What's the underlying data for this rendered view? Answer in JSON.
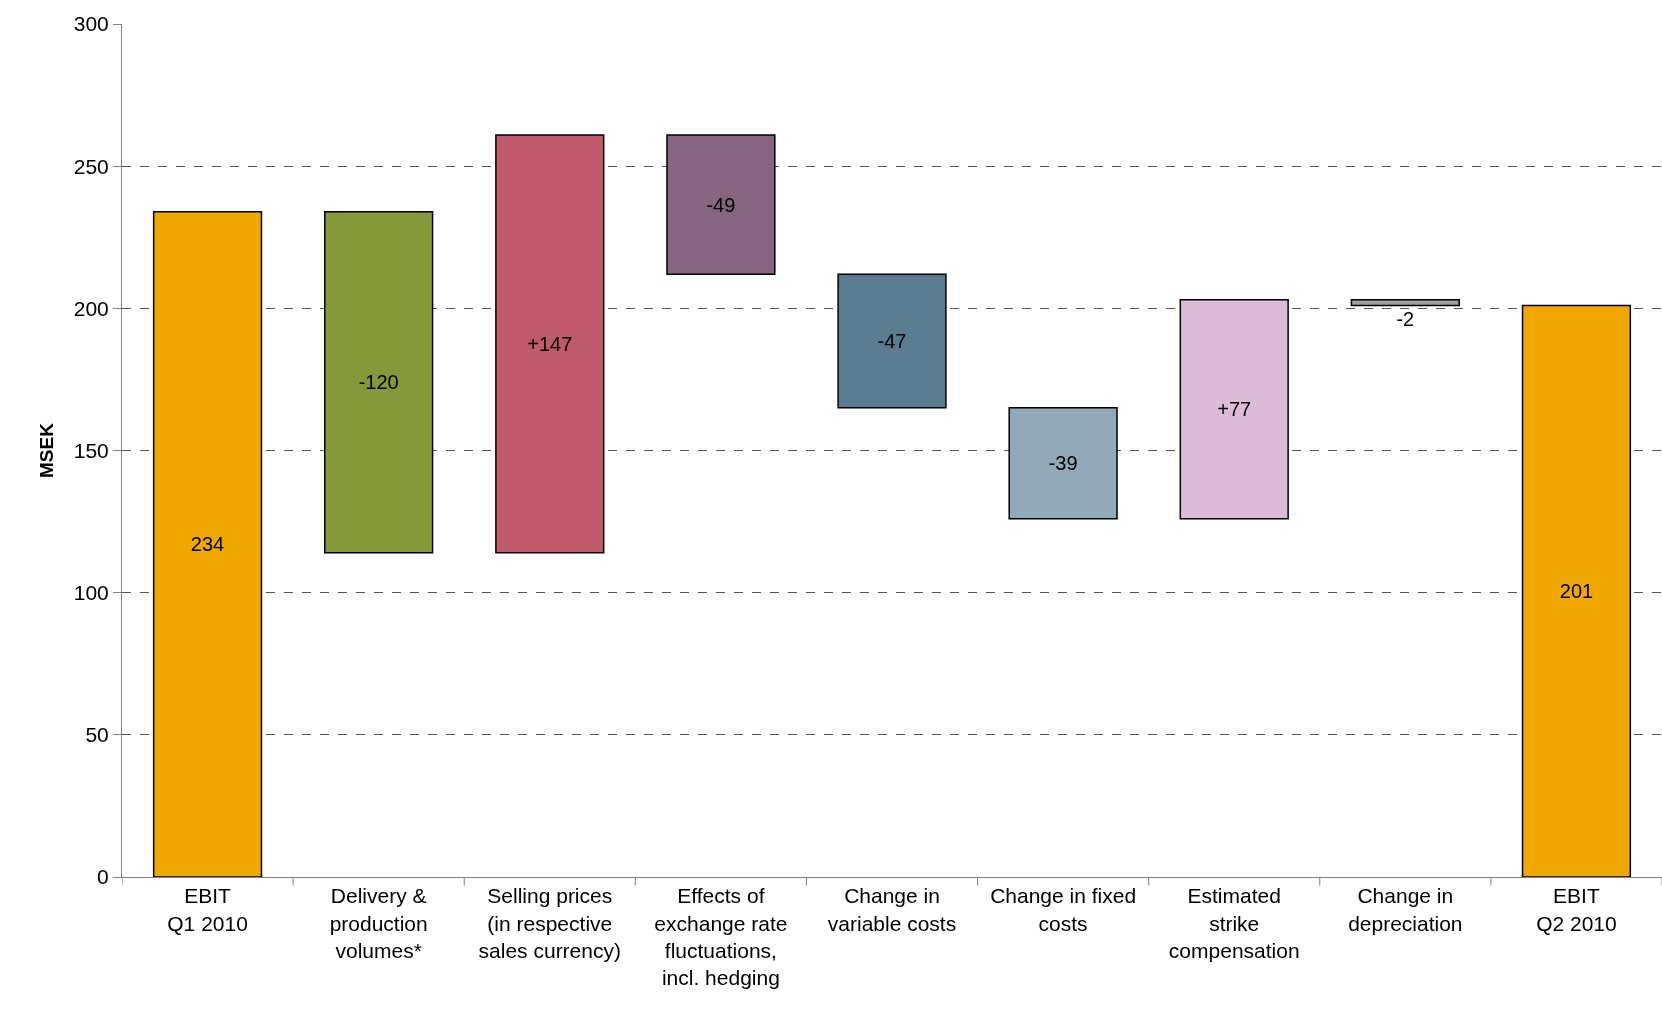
{
  "chart_data": {
    "type": "bar",
    "ylabel": "MSEK",
    "categories": [
      "EBIT\nQ1 2010",
      "Delivery &\nproduction\nvolumes*",
      "Selling prices\n(in respective\nsales currency)",
      "Effects of\nexchange rate\nfluctuations,\nincl. hedging",
      "Change in\nvariable costs",
      "Change in fixed\ncosts",
      "Estimated\nstrike\ncompensation",
      "Change in\ndepreciation",
      "EBIT\nQ2 2010"
    ],
    "values": [
      234,
      -120,
      147,
      -49,
      -47,
      -39,
      77,
      -2,
      201
    ],
    "base": [
      0,
      234,
      114,
      261,
      212,
      165,
      126,
      203,
      0
    ],
    "value_labels": [
      "234",
      "-120",
      "+147",
      "-49",
      "-47",
      "-39",
      "+77",
      "-2",
      "201"
    ],
    "colors": [
      "#f0a800",
      "#86993a",
      "#c0596a",
      "#85657f",
      "#5a7d92",
      "#92aab7",
      "#dbbbd8",
      "#a0a0a0",
      "#f0a800"
    ],
    "ylim": [
      0,
      300
    ],
    "yticks": [
      0,
      50,
      100,
      150,
      200,
      250,
      300
    ],
    "grid": "y",
    "legend": false
  }
}
